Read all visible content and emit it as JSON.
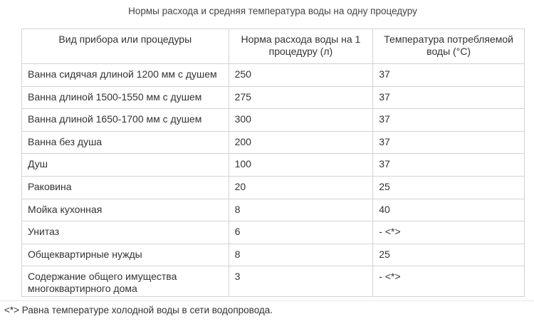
{
  "caption": "Нормы расхода и средняя температура воды на одну процедуру",
  "table": {
    "headers": [
      "Вид прибора или процедуры",
      "Норма расхода воды на 1 процедуру (л)",
      "Температура потребляемой воды (°С)"
    ],
    "rows": [
      [
        "Ванна сидячая длиной 1200 мм с душем",
        "250",
        "37"
      ],
      [
        "Ванна длиной 1500-1550 мм с душем",
        "275",
        "37"
      ],
      [
        "Ванна длиной 1650-1700 мм с душем",
        "300",
        "37"
      ],
      [
        "Ванна без душа",
        "200",
        "37"
      ],
      [
        "Душ",
        "100",
        "37"
      ],
      [
        "Раковина",
        "20",
        "25"
      ],
      [
        "Мойка кухонная",
        "8",
        "40"
      ],
      [
        "Унитаз",
        "6",
        "- <*>"
      ],
      [
        "Общеквартирные нужды",
        "8",
        "25"
      ],
      [
        "Содержание общего имущества многоквартирного дома",
        "3",
        "- <*>"
      ]
    ]
  },
  "footnote": "<*> Равна температуре холодной воды в сети водопровода."
}
